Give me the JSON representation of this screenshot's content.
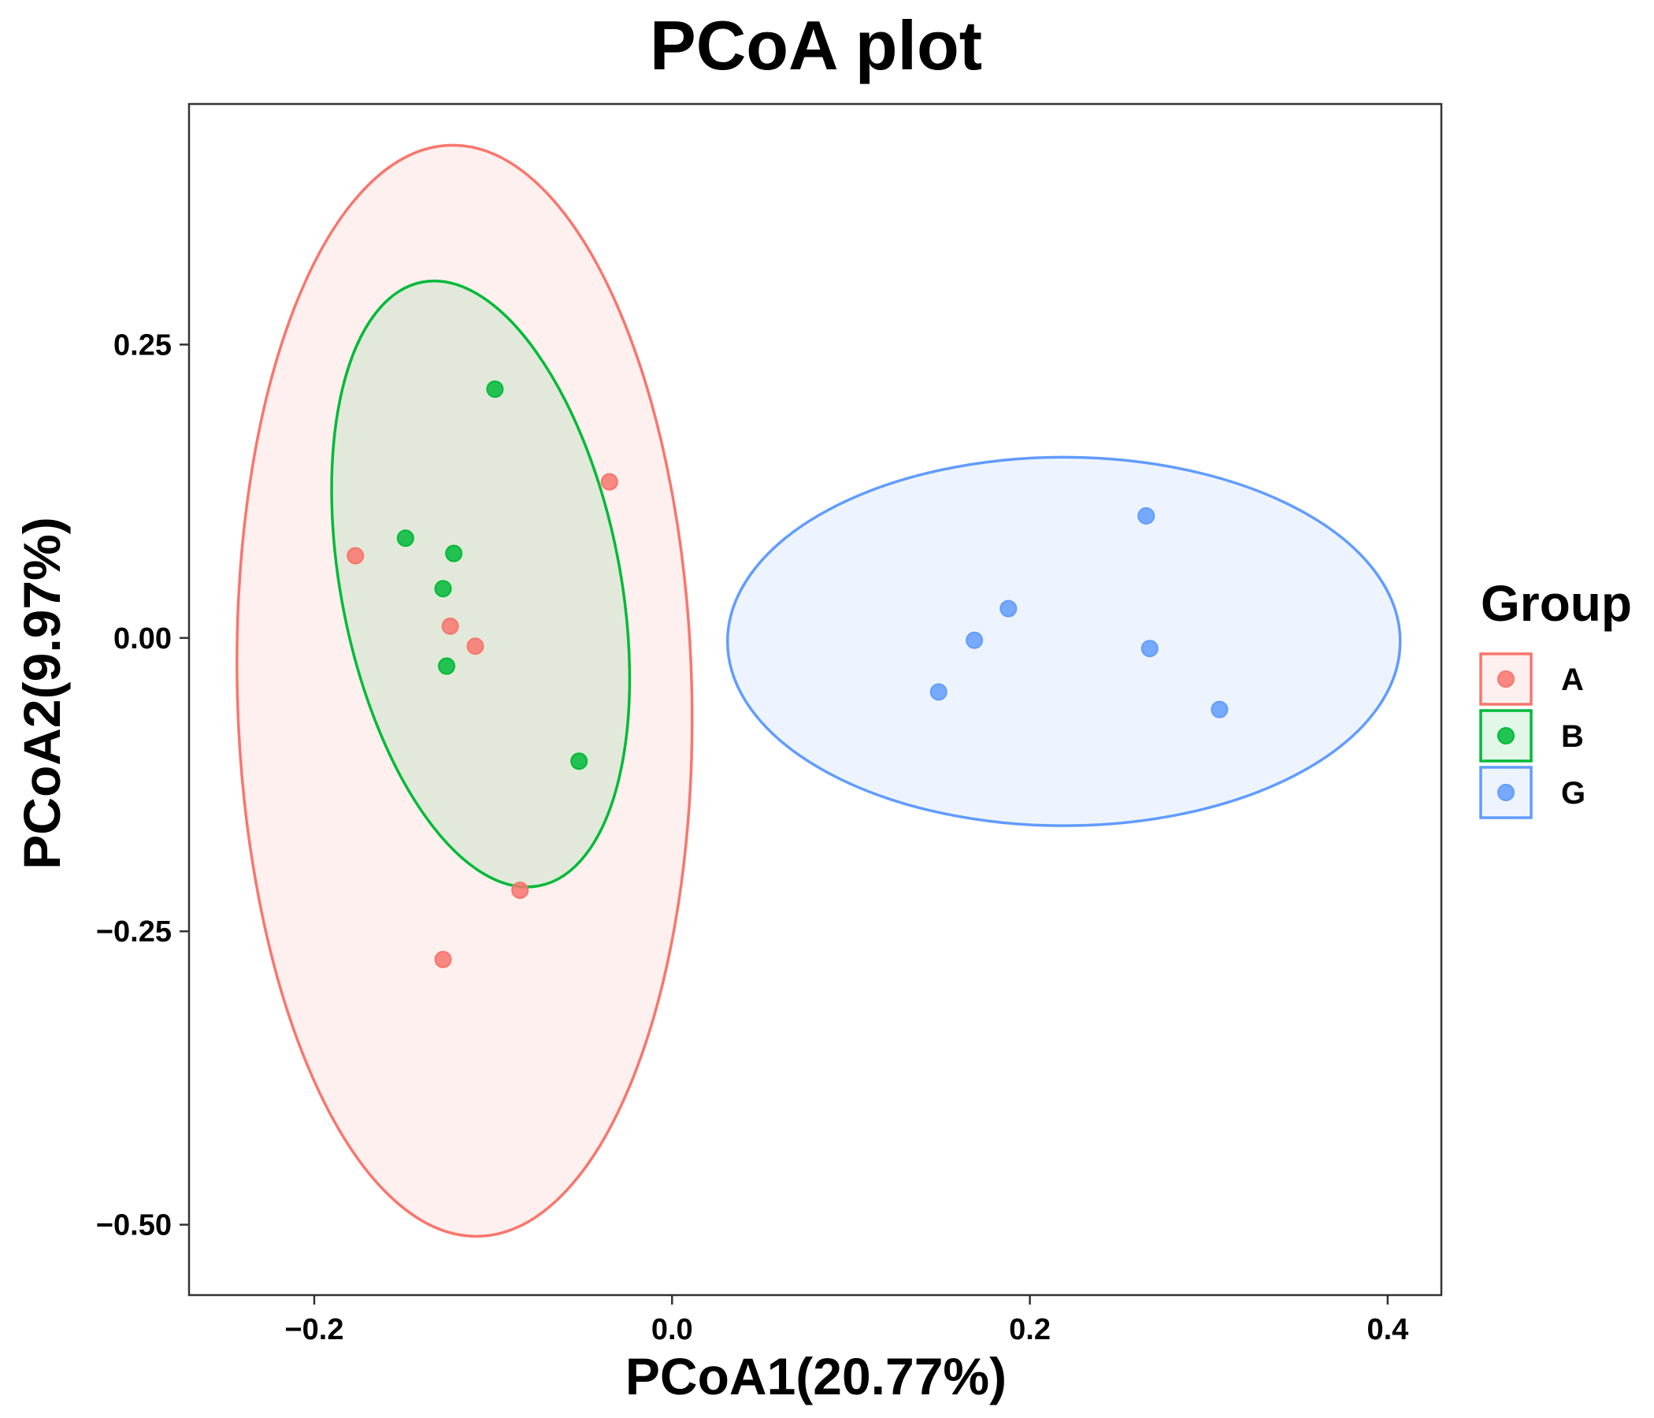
{
  "chart_data": {
    "type": "scatter",
    "title": "PCoA plot",
    "xlabel": "PCoA1(20.77%)",
    "ylabel": "PCoA2(9.97%)",
    "xlim": [
      -0.27,
      0.43
    ],
    "ylim": [
      -0.56,
      0.455
    ],
    "x_ticks": [
      -0.2,
      0.0,
      0.2,
      0.4
    ],
    "x_tick_labels": [
      "−0.2",
      "0.0",
      "0.2",
      "0.4"
    ],
    "y_ticks": [
      -0.5,
      -0.25,
      0.0,
      0.25
    ],
    "y_tick_labels": [
      "−0.50",
      "−0.25",
      "0.00",
      "0.25"
    ],
    "grid": false,
    "legend": {
      "title": "Group",
      "position": "right"
    },
    "series": [
      {
        "name": "A",
        "color": "#F8766D",
        "points": [
          {
            "x": -0.177,
            "y": 0.07
          },
          {
            "x": -0.124,
            "y": 0.01
          },
          {
            "x": -0.11,
            "y": -0.007
          },
          {
            "x": -0.035,
            "y": 0.133
          },
          {
            "x": -0.085,
            "y": -0.215
          },
          {
            "x": -0.128,
            "y": -0.274
          }
        ],
        "ellipse": {
          "cx": -0.116,
          "cy": -0.045,
          "rx": 0.127,
          "ry": 0.465,
          "angle": 1.5
        }
      },
      {
        "name": "B",
        "color": "#00BA38",
        "points": [
          {
            "x": -0.099,
            "y": 0.212
          },
          {
            "x": -0.149,
            "y": 0.085
          },
          {
            "x": -0.122,
            "y": 0.072
          },
          {
            "x": -0.128,
            "y": 0.042
          },
          {
            "x": -0.126,
            "y": -0.024
          },
          {
            "x": -0.052,
            "y": -0.105
          }
        ],
        "ellipse": {
          "cx": -0.107,
          "cy": 0.046,
          "rx": 0.078,
          "ry": 0.262,
          "angle": 11
        }
      },
      {
        "name": "G",
        "color": "#619CFF",
        "points": [
          {
            "x": 0.265,
            "y": 0.104
          },
          {
            "x": 0.188,
            "y": 0.025
          },
          {
            "x": 0.169,
            "y": -0.002
          },
          {
            "x": 0.267,
            "y": -0.009
          },
          {
            "x": 0.149,
            "y": -0.046
          },
          {
            "x": 0.306,
            "y": -0.061
          }
        ],
        "ellipse": {
          "cx": 0.219,
          "cy": -0.003,
          "rx": 0.188,
          "ry": 0.157,
          "angle": 0
        }
      }
    ]
  }
}
